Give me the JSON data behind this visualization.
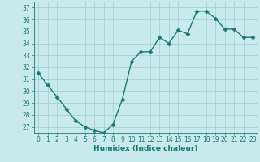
{
  "x": [
    0,
    1,
    2,
    3,
    4,
    5,
    6,
    7,
    8,
    9,
    10,
    11,
    12,
    13,
    14,
    15,
    16,
    17,
    18,
    19,
    20,
    21,
    22,
    23
  ],
  "y": [
    31.5,
    30.5,
    29.5,
    28.5,
    27.5,
    27.0,
    26.7,
    26.5,
    27.2,
    29.3,
    32.5,
    33.3,
    33.3,
    34.5,
    34.0,
    35.1,
    34.8,
    36.7,
    36.7,
    36.1,
    35.2,
    35.2,
    34.5,
    34.5
  ],
  "line_color": "#1a7a6e",
  "marker": "D",
  "marker_size": 2.5,
  "bg_color": "#c8eaea",
  "grid_color": "#a0cccc",
  "xlabel": "Humidex (Indice chaleur)",
  "xlim": [
    -0.5,
    23.5
  ],
  "ylim": [
    26.5,
    37.5
  ],
  "yticks": [
    27,
    28,
    29,
    30,
    31,
    32,
    33,
    34,
    35,
    36,
    37
  ],
  "xticks": [
    0,
    1,
    2,
    3,
    4,
    5,
    6,
    7,
    8,
    9,
    10,
    11,
    12,
    13,
    14,
    15,
    16,
    17,
    18,
    19,
    20,
    21,
    22,
    23
  ],
  "xlabel_fontsize": 6.5,
  "tick_fontsize": 5.5,
  "line_width": 1.0
}
